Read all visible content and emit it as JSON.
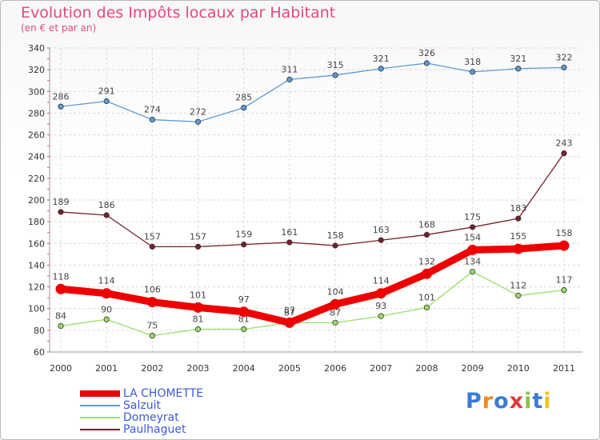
{
  "title": "Evolution des Impôts locaux par Habitant",
  "subtitle": "(en € et par an)",
  "logo": "Proxiti",
  "chart_data": {
    "type": "line",
    "categories": [
      "2000",
      "2001",
      "2002",
      "2003",
      "2004",
      "2005",
      "2006",
      "2007",
      "2008",
      "2009",
      "2010",
      "2011"
    ],
    "ylim": [
      60,
      340
    ],
    "yticks": [
      60,
      80,
      100,
      120,
      140,
      160,
      180,
      200,
      220,
      240,
      260,
      280,
      300,
      320,
      340
    ],
    "grid": true,
    "legend_position": "bottom-left",
    "series": [
      {
        "name": "LA CHOMETTE",
        "color": "#ee0000",
        "values": [
          118,
          114,
          106,
          101,
          97,
          87,
          104,
          114,
          132,
          154,
          155,
          158
        ]
      },
      {
        "name": "Salzuit",
        "color": "#5b9bd5",
        "values": [
          286,
          291,
          274,
          272,
          285,
          311,
          315,
          321,
          326,
          318,
          321,
          322
        ]
      },
      {
        "name": "Domeyrat",
        "color": "#99dd66",
        "values": [
          84,
          90,
          75,
          81,
          81,
          87,
          87,
          93,
          101,
          134,
          112,
          117
        ]
      },
      {
        "name": "Paulhaguet",
        "color": "#7a1f2a",
        "values": [
          189,
          186,
          157,
          157,
          159,
          161,
          158,
          163,
          168,
          175,
          183,
          243
        ]
      }
    ]
  }
}
